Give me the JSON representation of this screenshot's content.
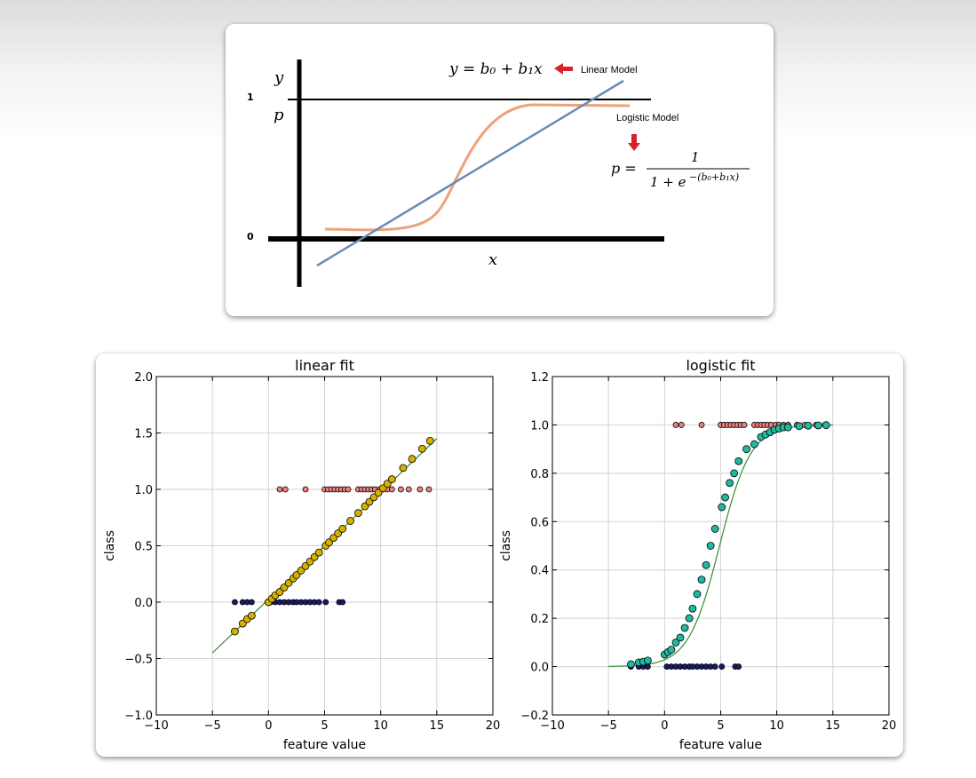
{
  "diagram": {
    "y_label": "y",
    "p_label": "p",
    "x_label": "x",
    "one_label": "1",
    "zero_label": "0",
    "linear_equation": "y = b₀ + b₁x",
    "linear_model_label": "Linear Model",
    "logistic_model_label": "Logistic Model",
    "logistic_equation_lhs": "p =",
    "logistic_equation_numerator": "1",
    "logistic_equation_denominator": "1 + e",
    "logistic_equation_exponent": "−(b₀+b₁x)",
    "colors": {
      "linear": "#6a8ab8",
      "logistic": "#eda27a",
      "arrow": "#d7222d"
    }
  },
  "chart_data": [
    {
      "type": "scatter",
      "title": "linear fit",
      "xlabel": "feature value",
      "ylabel": "class",
      "xlim": [
        -10,
        20
      ],
      "ylim": [
        -1.0,
        2.0
      ],
      "xticks": [
        -10,
        -5,
        0,
        5,
        10,
        15,
        20
      ],
      "xtick_labels": [
        "−10",
        "−5",
        "0",
        "5",
        "10",
        "15",
        "20"
      ],
      "yticks": [
        -1.0,
        -0.5,
        0.0,
        0.5,
        1.0,
        1.5,
        2.0
      ],
      "ytick_labels": [
        "−1.0",
        "−0.5",
        "0.0",
        "0.5",
        "1.0",
        "1.5",
        "2.0"
      ],
      "grid": true,
      "fit_line": {
        "x": [
          -5,
          15
        ],
        "y": [
          -0.45,
          1.45
        ],
        "color": "#2f8f2f"
      },
      "series": [
        {
          "kind": "class-1",
          "color": "#f08080",
          "y": 1.0,
          "x": [
            1.0,
            1.5,
            3.3,
            5.0,
            5.3,
            5.6,
            5.9,
            6.2,
            6.5,
            6.8,
            7.1,
            8.0,
            8.3,
            8.6,
            8.9,
            9.2,
            9.5,
            9.9,
            10.2,
            10.6,
            11.0,
            11.8,
            12.5,
            13.5,
            14.3
          ]
        },
        {
          "kind": "class-0",
          "color": "#1a1a6e",
          "y": 0.0,
          "x": [
            -3.0,
            -2.3,
            -1.9,
            -1.5,
            0.2,
            0.6,
            1.0,
            1.4,
            1.8,
            2.2,
            2.5,
            2.9,
            3.3,
            3.7,
            4.1,
            4.5,
            5.1,
            6.3,
            6.6
          ]
        },
        {
          "kind": "fitted",
          "color": "#d4b000",
          "x": [
            -3.0,
            -2.3,
            -1.9,
            -1.5,
            0.0,
            0.3,
            0.6,
            1.0,
            1.4,
            1.8,
            2.2,
            2.5,
            2.9,
            3.3,
            3.7,
            4.1,
            4.5,
            5.1,
            5.4,
            5.8,
            6.2,
            6.6,
            7.3,
            8.0,
            8.6,
            9.0,
            9.4,
            9.8,
            10.2,
            10.6,
            11.0,
            12.0,
            12.8,
            13.7,
            14.4
          ],
          "y": [
            -0.26,
            -0.19,
            -0.15,
            -0.12,
            0.0,
            0.03,
            0.06,
            0.09,
            0.13,
            0.17,
            0.21,
            0.24,
            0.28,
            0.32,
            0.36,
            0.4,
            0.44,
            0.5,
            0.53,
            0.57,
            0.61,
            0.65,
            0.72,
            0.79,
            0.85,
            0.89,
            0.93,
            0.97,
            1.01,
            1.05,
            1.09,
            1.19,
            1.27,
            1.36,
            1.43
          ]
        }
      ]
    },
    {
      "type": "scatter",
      "title": "logistic fit",
      "xlabel": "feature value",
      "ylabel": "class",
      "xlim": [
        -10,
        20
      ],
      "ylim": [
        -0.2,
        1.2
      ],
      "xticks": [
        -10,
        -5,
        0,
        5,
        10,
        15,
        20
      ],
      "xtick_labels": [
        "−10",
        "−5",
        "0",
        "5",
        "10",
        "15",
        "20"
      ],
      "yticks": [
        -0.2,
        0.0,
        0.2,
        0.4,
        0.6,
        0.8,
        1.0,
        1.2
      ],
      "ytick_labels": [
        "−0.2",
        "0.0",
        "0.2",
        "0.4",
        "0.6",
        "0.8",
        "1.0",
        "1.2"
      ],
      "grid": true,
      "fit_curve": {
        "x_min": -5,
        "x_max": 15,
        "midpoint": 4.9,
        "slope": 0.72,
        "color": "#2f8f2f"
      },
      "series": [
        {
          "kind": "class-1",
          "color": "#f08080",
          "y": 1.0,
          "x": [
            1.0,
            1.5,
            3.3,
            5.0,
            5.3,
            5.6,
            5.9,
            6.2,
            6.5,
            6.8,
            7.1,
            8.0,
            8.3,
            8.6,
            8.9,
            9.2,
            9.5,
            9.9,
            10.2,
            10.6,
            11.0,
            11.8,
            12.5,
            13.5,
            14.3
          ]
        },
        {
          "kind": "class-0",
          "color": "#1a1a6e",
          "y": 0.0,
          "x": [
            -3.0,
            -2.3,
            -1.9,
            -1.5,
            0.2,
            0.6,
            1.0,
            1.4,
            1.8,
            2.2,
            2.5,
            2.9,
            3.3,
            3.7,
            4.1,
            4.5,
            5.1,
            6.3,
            6.6
          ]
        },
        {
          "kind": "fitted",
          "color": "#1fb9a0",
          "x": [
            -3.0,
            -2.3,
            -1.9,
            -1.5,
            0.0,
            0.3,
            0.6,
            1.0,
            1.4,
            1.8,
            2.2,
            2.5,
            2.9,
            3.3,
            3.7,
            4.1,
            4.5,
            5.1,
            5.4,
            5.8,
            6.2,
            6.6,
            7.3,
            8.0,
            8.6,
            9.0,
            9.4,
            9.8,
            10.2,
            10.6,
            11.0,
            12.0,
            12.8,
            13.7,
            14.4
          ],
          "y": [
            0.01,
            0.017,
            0.02,
            0.025,
            0.05,
            0.06,
            0.07,
            0.1,
            0.12,
            0.16,
            0.2,
            0.24,
            0.3,
            0.36,
            0.42,
            0.5,
            0.57,
            0.66,
            0.7,
            0.76,
            0.8,
            0.85,
            0.9,
            0.92,
            0.95,
            0.96,
            0.97,
            0.98,
            0.985,
            0.99,
            0.99,
            0.995,
            0.997,
            0.998,
            0.999
          ]
        }
      ]
    }
  ]
}
